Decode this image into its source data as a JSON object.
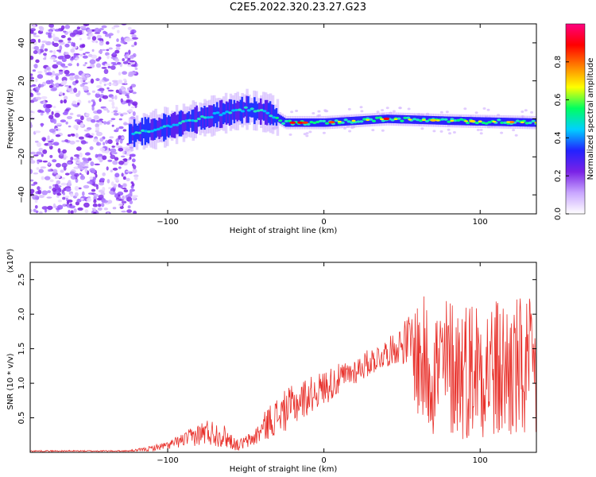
{
  "title": "C2E5.2022.320.23.27.G23",
  "chart_data": [
    {
      "type": "heatmap",
      "xlabel": "Height of straight line (km)",
      "ylabel": "Frequency (Hz)",
      "xlim": [
        -188,
        136
      ],
      "ylim": [
        -50,
        50
      ],
      "xticks": [
        -100,
        0,
        100
      ],
      "yticks": [
        -40,
        -20,
        0,
        20,
        40
      ],
      "colorbar": {
        "label": "Normalized spectral amplitude",
        "range": [
          0.0,
          1.0
        ],
        "ticks": [
          "0.0",
          "0.2",
          "0.4",
          "0.6",
          "0.8"
        ],
        "colormap": [
          "#ffffff",
          "#c9a6ff",
          "#7a22e6",
          "#2222ff",
          "#00d0ff",
          "#00ff60",
          "#ffff00",
          "#ff8000",
          "#ff0000",
          "#ff0080"
        ]
      },
      "features": [
        {
          "name": "noise",
          "x_range": [
            -188,
            -120
          ],
          "y_range": [
            -50,
            50
          ],
          "level": 0.05
        },
        {
          "name": "signal",
          "x_range": [
            -125,
            136
          ],
          "center_hz": [
            [
              -125,
              -8
            ],
            [
              -100,
              -4
            ],
            [
              -70,
              2
            ],
            [
              -50,
              5
            ],
            [
              -35,
              3
            ],
            [
              -25,
              -2
            ],
            [
              0,
              -2
            ],
            [
              40,
              0
            ],
            [
              80,
              -1
            ],
            [
              136,
              -2
            ]
          ]
        }
      ]
    },
    {
      "type": "line",
      "xlabel": "Height of straight line (km)",
      "ylabel": "SNR (10 * v/v)",
      "yscale_note": "(x10⁴)",
      "xlim": [
        -188,
        136
      ],
      "ylim": [
        0,
        2.75
      ],
      "xticks": [
        -100,
        0,
        100
      ],
      "yticks": [
        0.5,
        1.0,
        1.5,
        2.0,
        2.5
      ],
      "color": "#e8312b",
      "envelope": {
        "x": [
          -188,
          -125,
          -115,
          -100,
          -90,
          -75,
          -65,
          -55,
          -45,
          -35,
          -25,
          -15,
          -5,
          5,
          15,
          25,
          35,
          45,
          50,
          55,
          60,
          70,
          80,
          90,
          100,
          110,
          120,
          136
        ],
        "mean": [
          0.02,
          0.02,
          0.04,
          0.1,
          0.18,
          0.3,
          0.25,
          0.1,
          0.2,
          0.45,
          0.6,
          0.75,
          0.88,
          1.0,
          1.12,
          1.25,
          1.38,
          1.5,
          1.58,
          1.62,
          1.35,
          1.2,
          1.25,
          1.2,
          1.3,
          1.15,
          1.2,
          1.1
        ],
        "spread": [
          0.01,
          0.01,
          0.03,
          0.06,
          0.1,
          0.2,
          0.18,
          0.08,
          0.12,
          0.25,
          0.3,
          0.3,
          0.25,
          0.25,
          0.2,
          0.2,
          0.2,
          0.22,
          0.3,
          0.4,
          0.95,
          1.0,
          1.05,
          1.05,
          1.05,
          1.1,
          1.1,
          1.1
        ]
      }
    }
  ]
}
